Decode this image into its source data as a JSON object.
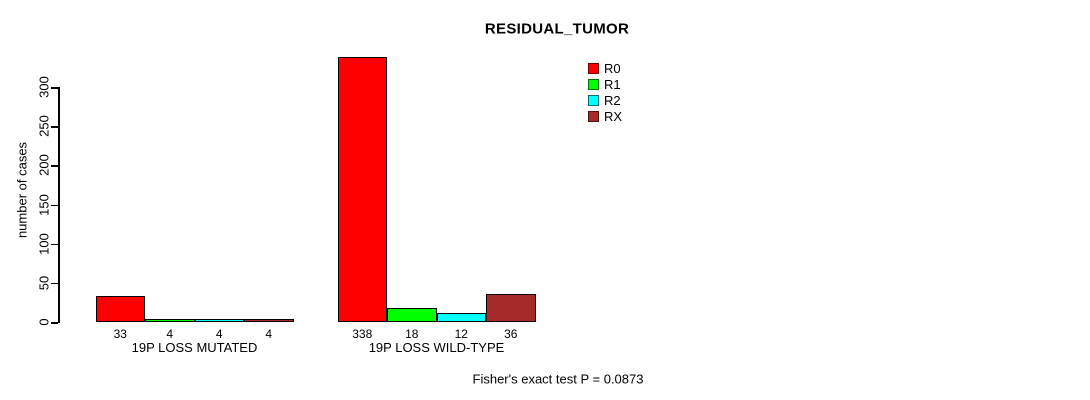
{
  "chart_data": {
    "type": "bar",
    "title": "RESIDUAL_TUMOR",
    "ylabel": "number of cases",
    "xlabel": "",
    "annotation": "Fisher's exact test P = 0.0873",
    "categories": [
      "19P LOSS MUTATED",
      "19P LOSS WILD-TYPE"
    ],
    "series": [
      {
        "name": "R0",
        "color": "#ff0000",
        "values": [
          33,
          338
        ]
      },
      {
        "name": "R1",
        "color": "#00ff00",
        "values": [
          4,
          18
        ]
      },
      {
        "name": "R2",
        "color": "#00ffff",
        "values": [
          4,
          12
        ]
      },
      {
        "name": "RX",
        "color": "#a52a2a",
        "values": [
          4,
          36
        ]
      }
    ],
    "bar_value_labels": [
      [
        33,
        4,
        4,
        4
      ],
      [
        338,
        18,
        12,
        36
      ]
    ],
    "yticks": [
      0,
      50,
      100,
      150,
      200,
      250,
      300
    ],
    "ylim": [
      0,
      340
    ],
    "grid": false,
    "legend_position": "right",
    "bar_border_color": "#000000",
    "text_color": "#000000",
    "background_color": "#ffffff"
  }
}
